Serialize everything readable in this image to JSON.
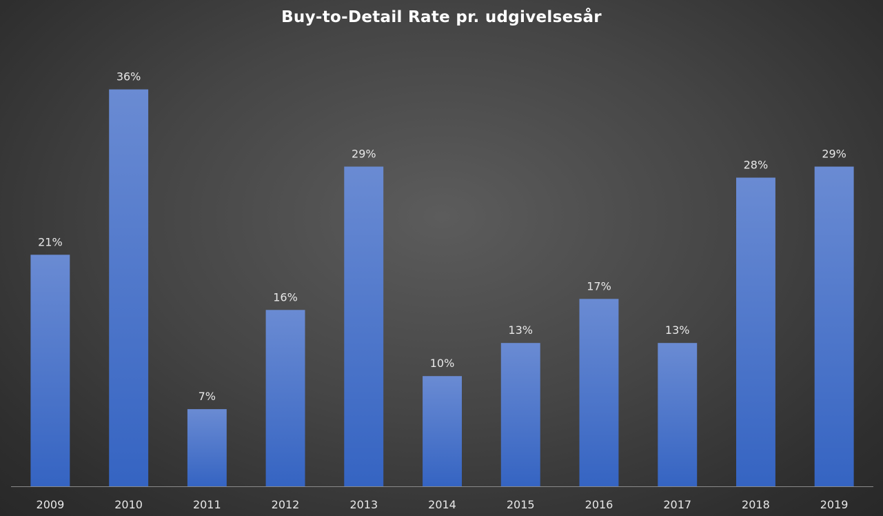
{
  "chart_data": {
    "type": "bar",
    "title": "Buy-to-Detail Rate pr. udgivelsesår",
    "xlabel": "",
    "ylabel": "",
    "categories": [
      "2009",
      "2010",
      "2011",
      "2012",
      "2013",
      "2014",
      "2015",
      "2016",
      "2017",
      "2018",
      "2019"
    ],
    "values": [
      21,
      36,
      7,
      16,
      29,
      10,
      13,
      17,
      13,
      28,
      29
    ],
    "data_labels": [
      "21%",
      "36%",
      "7%",
      "16%",
      "29%",
      "10%",
      "13%",
      "17%",
      "13%",
      "28%",
      "29%"
    ],
    "ylim": [
      0,
      36.6
    ],
    "grid": false,
    "legend": "none",
    "colors": {
      "bar_top": "#6a8bd3",
      "bar_bottom": "#3564c2",
      "background": "#474747",
      "axis": "#8a8a8a",
      "text": "#e8e8e8"
    }
  }
}
